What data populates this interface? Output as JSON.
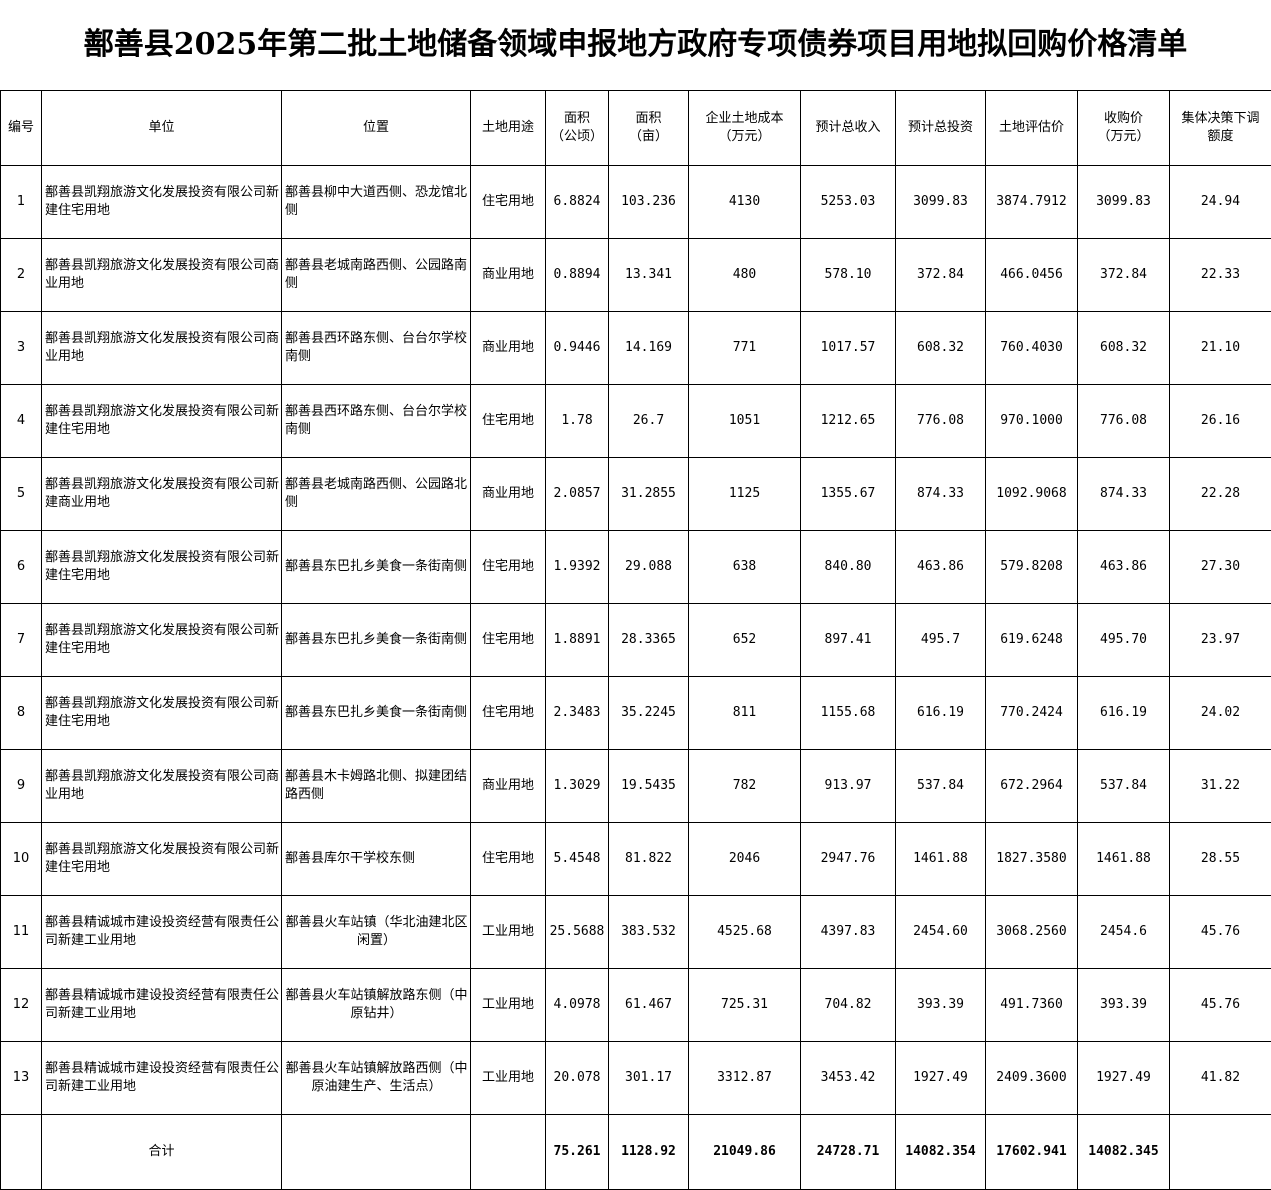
{
  "title": "鄯善县2025年第二批土地储备领域申报地方政府专项债券项目用地拟回购价格清单",
  "headers": [
    [
      "编号"
    ],
    [
      "单位"
    ],
    [
      "位置"
    ],
    [
      "土地用途"
    ],
    [
      "面积",
      "（公顷）"
    ],
    [
      "面积",
      "（亩）"
    ],
    [
      "企业土地成本",
      "（万元）"
    ],
    [
      "预计总收入"
    ],
    [
      "预计总投资"
    ],
    [
      "土地评估价"
    ],
    [
      "收购价",
      "（万元）"
    ],
    [
      "集体决策下调",
      "额度"
    ]
  ],
  "rows": [
    {
      "no": "1",
      "unit": "鄯善县凯翔旅游文化发展投资有限公司新建住宅用地",
      "location": "鄯善县柳中大道西侧、恐龙馆北侧",
      "use": "住宅用地",
      "ha": "6.8824",
      "mu": "103.236",
      "cost": "4130",
      "income": "5253.03",
      "invest": "3099.83",
      "eval": "3874.7912",
      "price": "3099.83",
      "reduce": "24.94"
    },
    {
      "no": "2",
      "unit": "鄯善县凯翔旅游文化发展投资有限公司商业用地",
      "location": "鄯善县老城南路西侧、公园路南侧",
      "use": "商业用地",
      "ha": "0.8894",
      "mu": "13.341",
      "cost": "480",
      "income": "578.10",
      "invest": "372.84",
      "eval": "466.0456",
      "price": "372.84",
      "reduce": "22.33"
    },
    {
      "no": "3",
      "unit": "鄯善县凯翔旅游文化发展投资有限公司商业用地",
      "location": "鄯善县西环路东侧、台台尔学校南侧",
      "use": "商业用地",
      "ha": "0.9446",
      "mu": "14.169",
      "cost": "771",
      "income": "1017.57",
      "invest": "608.32",
      "eval": "760.4030",
      "price": "608.32",
      "reduce": "21.10"
    },
    {
      "no": "4",
      "unit": "鄯善县凯翔旅游文化发展投资有限公司新建住宅用地",
      "location": "鄯善县西环路东侧、台台尔学校南侧",
      "use": "住宅用地",
      "ha": "1.78",
      "mu": "26.7",
      "cost": "1051",
      "income": "1212.65",
      "invest": "776.08",
      "eval": "970.1000",
      "price": "776.08",
      "reduce": "26.16"
    },
    {
      "no": "5",
      "unit": "鄯善县凯翔旅游文化发展投资有限公司新建商业用地",
      "location": "鄯善县老城南路西侧、公园路北侧",
      "use": "商业用地",
      "ha": "2.0857",
      "mu": "31.2855",
      "cost": "1125",
      "income": "1355.67",
      "invest": "874.33",
      "eval": "1092.9068",
      "price": "874.33",
      "reduce": "22.28"
    },
    {
      "no": "6",
      "unit": "鄯善县凯翔旅游文化发展投资有限公司新建住宅用地",
      "location": "鄯善县东巴扎乡美食一条街南侧",
      "use": "住宅用地",
      "ha": "1.9392",
      "mu": "29.088",
      "cost": "638",
      "income": "840.80",
      "invest": "463.86",
      "eval": "579.8208",
      "price": "463.86",
      "reduce": "27.30"
    },
    {
      "no": "7",
      "unit": "鄯善县凯翔旅游文化发展投资有限公司新建住宅用地",
      "location": "鄯善县东巴扎乡美食一条街南侧",
      "use": "住宅用地",
      "ha": "1.8891",
      "mu": "28.3365",
      "cost": "652",
      "income": "897.41",
      "invest": "495.7",
      "eval": "619.6248",
      "price": "495.70",
      "reduce": "23.97"
    },
    {
      "no": "8",
      "unit": "鄯善县凯翔旅游文化发展投资有限公司新建住宅用地",
      "location": "鄯善县东巴扎乡美食一条街南侧",
      "use": "住宅用地",
      "ha": "2.3483",
      "mu": "35.2245",
      "cost": "811",
      "income": "1155.68",
      "invest": "616.19",
      "eval": "770.2424",
      "price": "616.19",
      "reduce": "24.02"
    },
    {
      "no": "9",
      "unit": "鄯善县凯翔旅游文化发展投资有限公司商业用地",
      "location": "鄯善县木卡姆路北侧、拟建团结路西侧",
      "use": "商业用地",
      "ha": "1.3029",
      "mu": "19.5435",
      "cost": "782",
      "income": "913.97",
      "invest": "537.84",
      "eval": "672.2964",
      "price": "537.84",
      "reduce": "31.22"
    },
    {
      "no": "10",
      "unit": "鄯善县凯翔旅游文化发展投资有限公司新建住宅用地",
      "location": "鄯善县库尔干学校东侧",
      "use": "住宅用地",
      "ha": "5.4548",
      "mu": "81.822",
      "cost": "2046",
      "income": "2947.76",
      "invest": "1461.88",
      "eval": "1827.3580",
      "price": "1461.88",
      "reduce": "28.55"
    },
    {
      "no": "11",
      "unit": "鄯善县精诚城市建设投资经营有限责任公司新建工业用地",
      "location": "鄯善县火车站镇（华北油建北区闲置）",
      "use": "工业用地",
      "ha": "25.5688",
      "mu": "383.532",
      "cost": "4525.68",
      "income": "4397.83",
      "invest": "2454.60",
      "eval": "3068.2560",
      "price": "2454.6",
      "reduce": "45.76",
      "center": true
    },
    {
      "no": "12",
      "unit": "鄯善县精诚城市建设投资经营有限责任公司新建工业用地",
      "location": "鄯善县火车站镇解放路东侧（中原钻井）",
      "use": "工业用地",
      "ha": "4.0978",
      "mu": "61.467",
      "cost": "725.31",
      "income": "704.82",
      "invest": "393.39",
      "eval": "491.7360",
      "price": "393.39",
      "reduce": "45.76",
      "center": true
    },
    {
      "no": "13",
      "unit": "鄯善县精诚城市建设投资经营有限责任公司新建工业用地",
      "location": "鄯善县火车站镇解放路西侧（中原油建生产、生活点）",
      "use": "工业用地",
      "ha": "20.078",
      "mu": "301.17",
      "cost": "3312.87",
      "income": "3453.42",
      "invest": "1927.49",
      "eval": "2409.3600",
      "price": "1927.49",
      "reduce": "41.82",
      "center": true
    }
  ],
  "total": {
    "label": "合计",
    "ha": "75.261",
    "mu": "1128.92",
    "cost": "21049.86",
    "income": "24728.71",
    "invest": "14082.354",
    "eval": "17602.941",
    "price": "14082.345"
  }
}
